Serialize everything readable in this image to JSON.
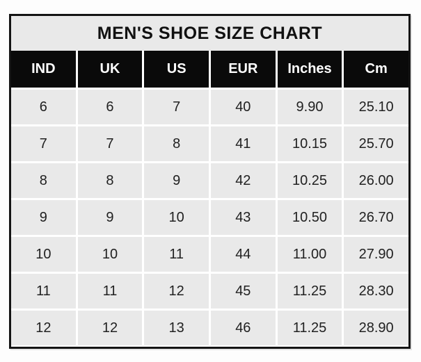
{
  "title": "MEN'S SHOE SIZE CHART",
  "table": {
    "columns": [
      "IND",
      "UK",
      "US",
      "EUR",
      "Inches",
      "Cm"
    ],
    "rows": [
      [
        "6",
        "6",
        "7",
        "40",
        "9.90",
        "25.10"
      ],
      [
        "7",
        "7",
        "8",
        "41",
        "10.15",
        "25.70"
      ],
      [
        "8",
        "8",
        "9",
        "42",
        "10.25",
        "26.00"
      ],
      [
        "9",
        "9",
        "10",
        "43",
        "10.50",
        "26.70"
      ],
      [
        "10",
        "10",
        "11",
        "44",
        "11.00",
        "27.90"
      ],
      [
        "11",
        "11",
        "12",
        "45",
        "11.25",
        "28.30"
      ],
      [
        "12",
        "12",
        "13",
        "46",
        "11.25",
        "28.90"
      ]
    ]
  },
  "colors": {
    "header_bg": "#0a0a0a",
    "header_text": "#ffffff",
    "title_bg": "#e9e9e9",
    "cell_bg": "#e9e9e9",
    "grid_line": "#ffffff",
    "outer_border": "#141414",
    "text": "#212121",
    "page_bg": "#fdfdfd"
  },
  "chart_data": {
    "type": "table",
    "title": "MEN'S SHOE SIZE CHART",
    "columns": [
      "IND",
      "UK",
      "US",
      "EUR",
      "Inches",
      "Cm"
    ],
    "rows": [
      [
        6,
        6,
        7,
        40,
        9.9,
        25.1
      ],
      [
        7,
        7,
        8,
        41,
        10.15,
        25.7
      ],
      [
        8,
        8,
        9,
        42,
        10.25,
        26.0
      ],
      [
        9,
        9,
        10,
        43,
        10.5,
        26.7
      ],
      [
        10,
        10,
        11,
        44,
        11.0,
        27.9
      ],
      [
        11,
        11,
        12,
        45,
        11.25,
        28.3
      ],
      [
        12,
        12,
        13,
        46,
        11.25,
        28.9
      ]
    ],
    "layout": {
      "header_style": "black-background-white-text",
      "body_style": "gray-cells-white-gridlines",
      "grid": true
    }
  }
}
